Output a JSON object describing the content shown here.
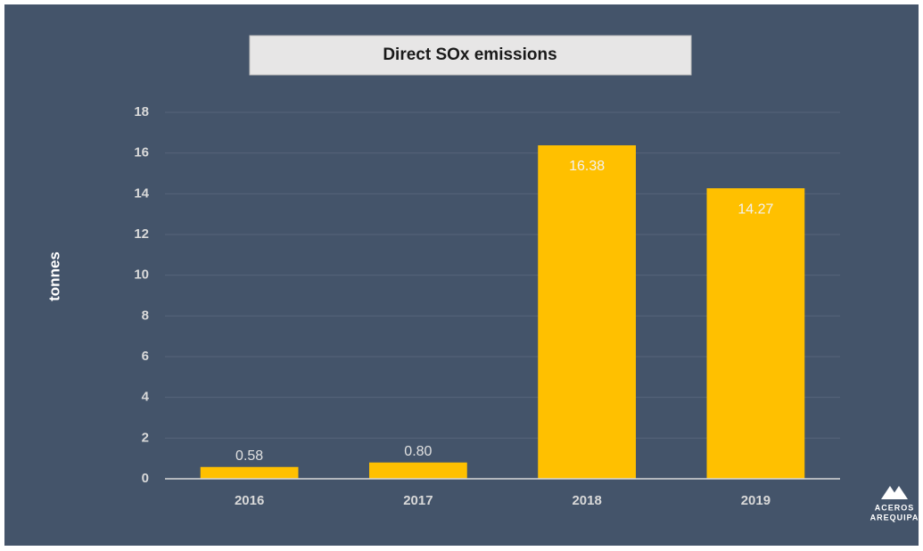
{
  "chart_data": {
    "type": "bar",
    "title": "Direct SOx emissions",
    "y_label": "tonnes",
    "categories": [
      "2016",
      "2017",
      "2018",
      "2019"
    ],
    "values": [
      0.58,
      0.8,
      16.38,
      14.27
    ],
    "value_labels": [
      "0.58",
      "0.80",
      "16.38",
      "14.27"
    ],
    "color": "#ffc000",
    "ylim": [
      0,
      18
    ],
    "yticks": [
      0,
      2,
      4,
      6,
      8,
      10,
      12,
      14,
      16,
      18
    ],
    "grid": true
  },
  "logo": {
    "line1": "ACEROS",
    "line2": "AREQUIPA"
  }
}
